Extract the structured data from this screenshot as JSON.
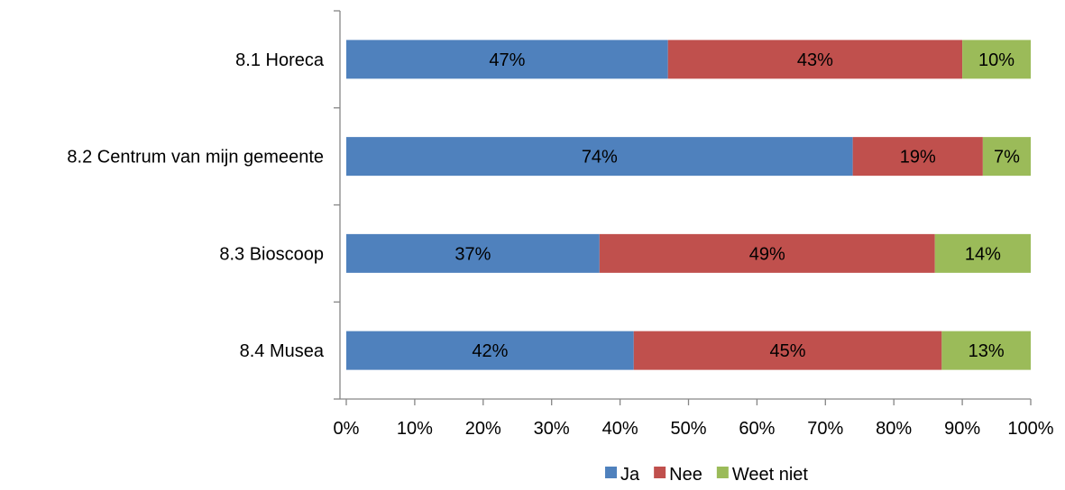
{
  "chart_data": {
    "type": "bar",
    "orientation": "horizontal",
    "stacked": "percent",
    "categories": [
      "8.1 Horeca",
      "8.2 Centrum van mijn gemeente",
      "8.3 Bioscoop",
      "8.4 Musea"
    ],
    "series": [
      {
        "name": "Ja",
        "color": "#4F81BD",
        "values": [
          47,
          74,
          37,
          42
        ]
      },
      {
        "name": "Nee",
        "color": "#C0504D",
        "values": [
          43,
          19,
          49,
          45
        ]
      },
      {
        "name": "Weet niet",
        "color": "#9BBB59",
        "values": [
          10,
          7,
          14,
          13
        ]
      }
    ],
    "data_labels": [
      [
        "47%",
        "74%",
        "37%",
        "42%"
      ],
      [
        "43%",
        "19%",
        "49%",
        "45%"
      ],
      [
        "10%",
        "7%",
        "14%",
        "13%"
      ]
    ],
    "xlim": [
      0,
      100
    ],
    "xticks": [
      "0%",
      "10%",
      "20%",
      "30%",
      "40%",
      "50%",
      "60%",
      "70%",
      "80%",
      "90%",
      "100%"
    ],
    "legend_position": "bottom",
    "grid": false
  }
}
